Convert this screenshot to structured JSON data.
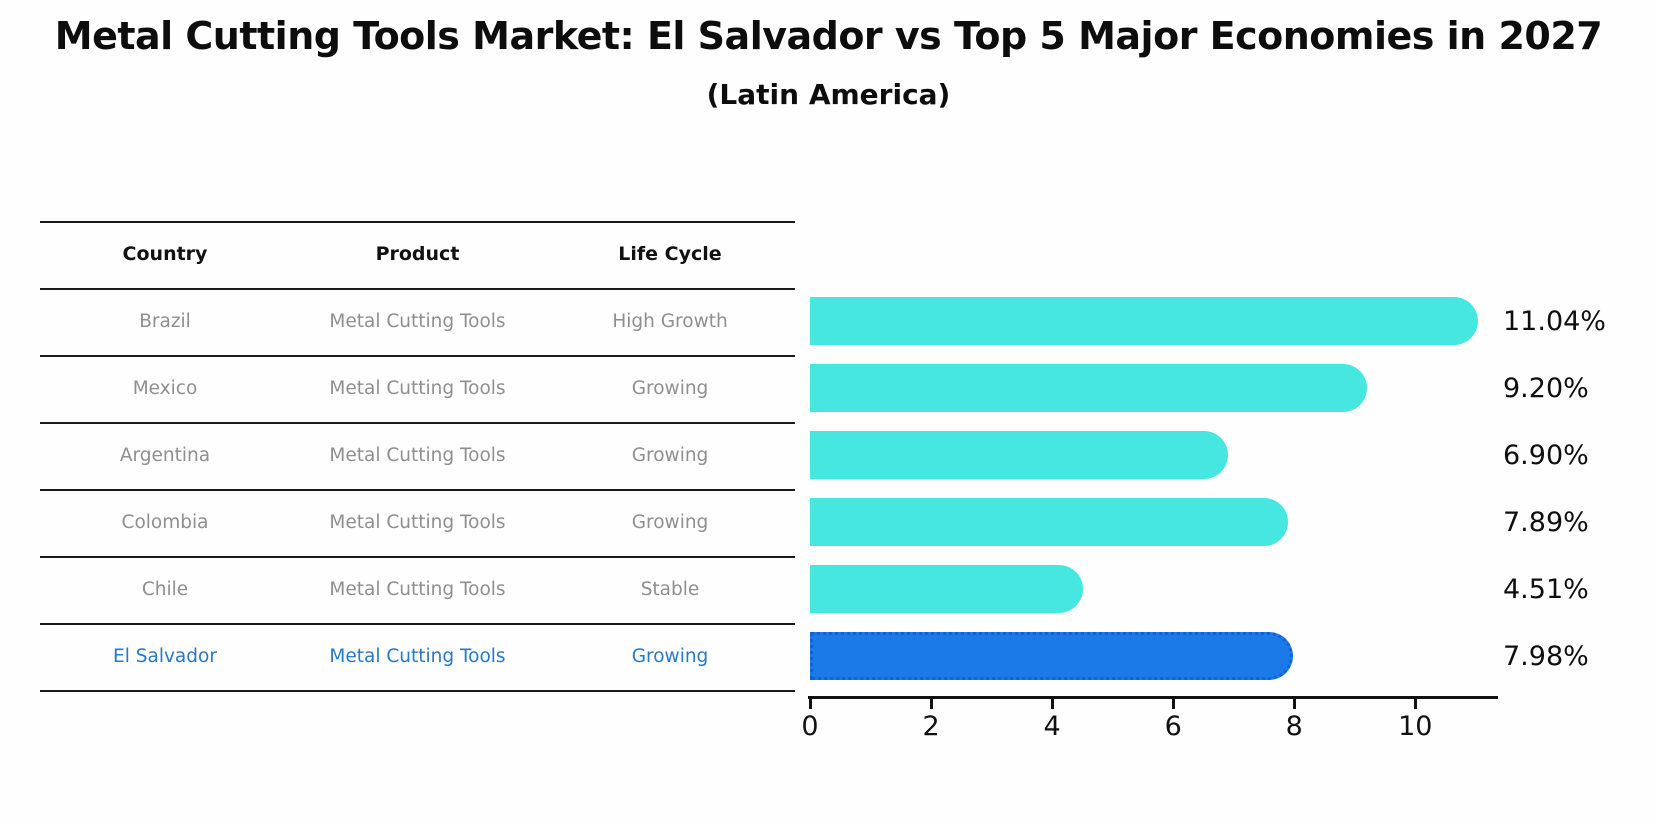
{
  "title": "Metal Cutting Tools Market: El Salvador vs Top 5 Major Economies in 2027",
  "subtitle": "(Latin America)",
  "table": {
    "headers": [
      "Country",
      "Product",
      "Life Cycle"
    ],
    "rows": [
      {
        "country": "Brazil",
        "product": "Metal Cutting Tools",
        "life_cycle": "High Growth",
        "highlight": false
      },
      {
        "country": "Mexico",
        "product": "Metal Cutting Tools",
        "life_cycle": "Growing",
        "highlight": false
      },
      {
        "country": "Argentina",
        "product": "Metal Cutting Tools",
        "life_cycle": "Growing",
        "highlight": false
      },
      {
        "country": "Colombia",
        "product": "Metal Cutting Tools",
        "life_cycle": "Growing",
        "highlight": false
      },
      {
        "country": "Chile",
        "product": "Metal Cutting Tools",
        "life_cycle": "Stable",
        "highlight": false
      },
      {
        "country": "El Salvador",
        "product": "Metal Cutting Tools",
        "life_cycle": "Growing",
        "highlight": true
      }
    ]
  },
  "chart_data": {
    "type": "bar",
    "orientation": "horizontal",
    "title": "Metal Cutting Tools Market: El Salvador vs Top 5 Major Economies in 2027",
    "subtitle": "(Latin America)",
    "categories": [
      "Brazil",
      "Mexico",
      "Argentina",
      "Colombia",
      "Chile",
      "El Salvador"
    ],
    "values": [
      11.04,
      9.2,
      6.9,
      7.89,
      4.51,
      7.98
    ],
    "value_labels": [
      "11.04%",
      "9.20%",
      "6.90%",
      "7.89%",
      "4.51%",
      "7.98%"
    ],
    "highlight_category": "El Salvador",
    "xlim": [
      0,
      11.3
    ],
    "x_ticks": [
      0,
      2,
      4,
      6,
      8,
      10
    ],
    "x_tick_labels": [
      "0",
      "2",
      "4",
      "6",
      "8",
      "10"
    ],
    "grid": false,
    "legend": false,
    "colors": {
      "bar": "#45E7E0",
      "highlight_bar": "#1C79E8",
      "highlight_border": "#1060D8",
      "highlight_text": "#2878C8",
      "table_text": "#8F8F8F",
      "axis": "#111111"
    }
  }
}
